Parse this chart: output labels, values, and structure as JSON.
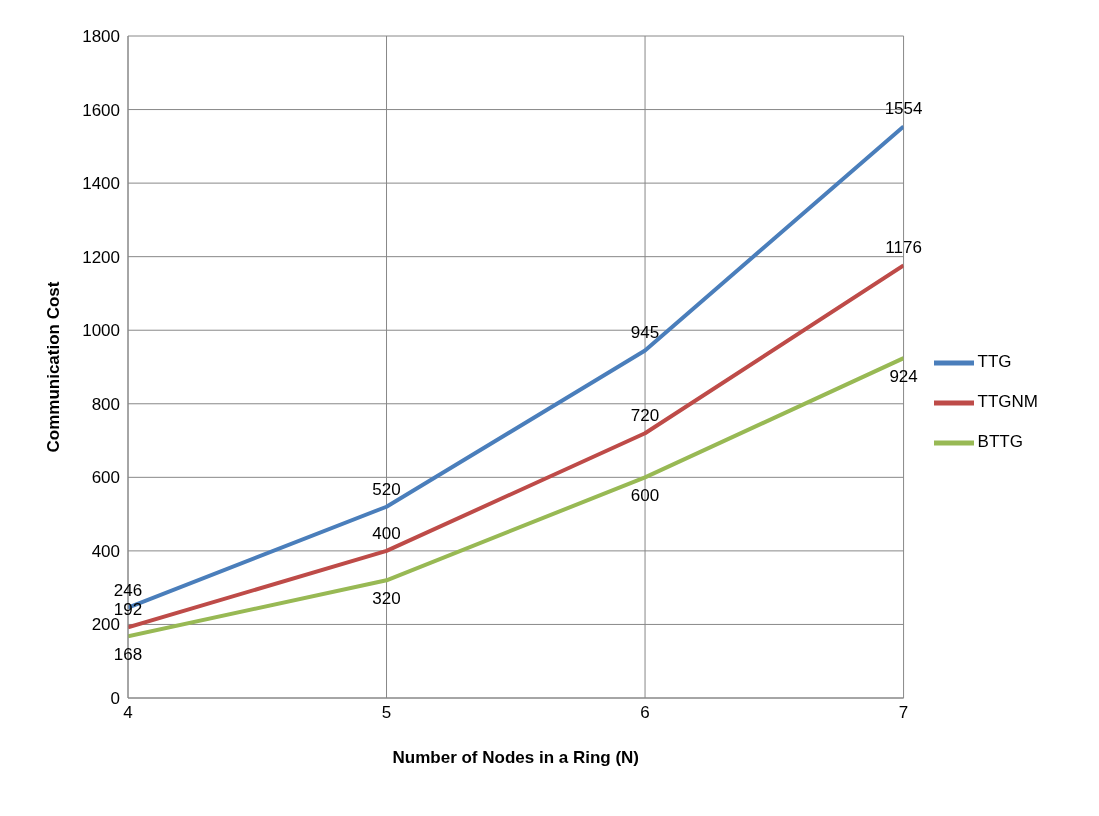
{
  "chart_data": {
    "type": "line",
    "xlabel": "Number of Nodes in a Ring (N)",
    "ylabel": "Communication Cost",
    "x": [
      4,
      5,
      6,
      7
    ],
    "xlim": [
      4,
      7
    ],
    "xticks": [
      4,
      5,
      6,
      7
    ],
    "ylim": [
      0,
      1800
    ],
    "yticks": [
      0,
      200,
      400,
      600,
      800,
      1000,
      1200,
      1400,
      1600,
      1800
    ],
    "series": [
      {
        "name": "TTG",
        "color": "#4a7ebb",
        "values": [
          246,
          520,
          945,
          1554
        ]
      },
      {
        "name": "TTGNM",
        "color": "#be4b48",
        "values": [
          192,
          400,
          720,
          1176
        ]
      },
      {
        "name": "BTTG",
        "color": "#98b954",
        "values": [
          168,
          320,
          600,
          924
        ]
      }
    ],
    "data_labels": true,
    "grid": true,
    "legend": "right",
    "marker": "none",
    "line_style": "solid"
  }
}
